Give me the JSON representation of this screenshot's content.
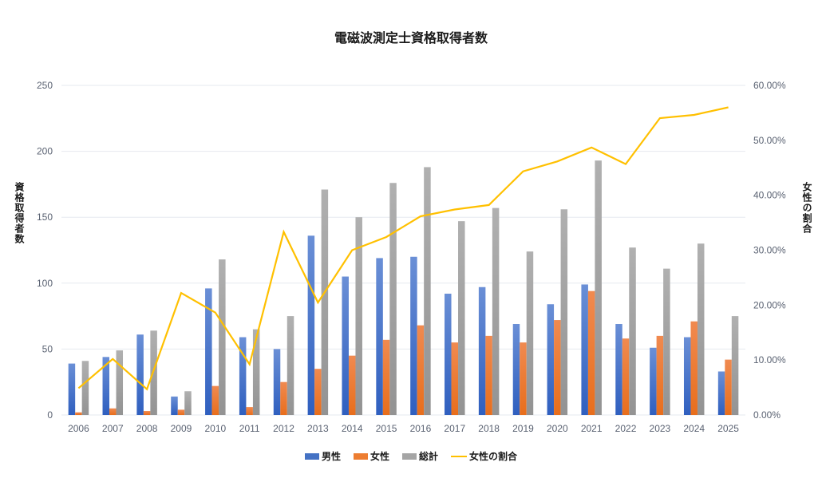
{
  "chart_data": {
    "type": "bar",
    "title": "電磁波測定士資格取得者数",
    "xlabel": "",
    "ylabel": "資格取得者数",
    "y2label": "女性の割合",
    "ylim": [
      0,
      250
    ],
    "y2lim": [
      0,
      60
    ],
    "yticks": [
      "0",
      "50",
      "100",
      "150",
      "200",
      "250"
    ],
    "y2ticks": [
      "0.00%",
      "10.00%",
      "20.00%",
      "30.00%",
      "40.00%",
      "50.00%",
      "60.00%"
    ],
    "grid": true,
    "legend_position": "bottom",
    "categories": [
      "2006",
      "2007",
      "2008",
      "2009",
      "2010",
      "2011",
      "2012",
      "2013",
      "2014",
      "2015",
      "2016",
      "2017",
      "2018",
      "2019",
      "2020",
      "2021",
      "2022",
      "2023",
      "2024",
      "2025"
    ],
    "series": [
      {
        "name": "男性",
        "type": "bar",
        "axis": "left",
        "color": "#4472C4",
        "values": [
          39,
          44,
          61,
          14,
          96,
          59,
          50,
          136,
          105,
          119,
          120,
          92,
          97,
          69,
          84,
          99,
          69,
          51,
          59,
          33
        ]
      },
      {
        "name": "女性",
        "type": "bar",
        "axis": "left",
        "color": "#ED7D31",
        "values": [
          2,
          5,
          3,
          4,
          22,
          6,
          25,
          35,
          45,
          57,
          68,
          55,
          60,
          55,
          72,
          94,
          58,
          60,
          71,
          42
        ]
      },
      {
        "name": "総計",
        "type": "bar",
        "axis": "left",
        "color": "#A5A5A5",
        "values": [
          41,
          49,
          64,
          18,
          118,
          65,
          75,
          171,
          150,
          176,
          188,
          147,
          157,
          124,
          156,
          193,
          127,
          111,
          130,
          75
        ]
      },
      {
        "name": "女性の割合",
        "type": "line",
        "axis": "right",
        "color": "#FFC000",
        "values": [
          4.88,
          10.2,
          4.69,
          22.22,
          18.64,
          9.23,
          33.33,
          20.47,
          30.0,
          32.39,
          36.17,
          37.41,
          38.22,
          44.35,
          46.15,
          48.7,
          45.67,
          54.05,
          54.62,
          56.0
        ]
      }
    ]
  }
}
